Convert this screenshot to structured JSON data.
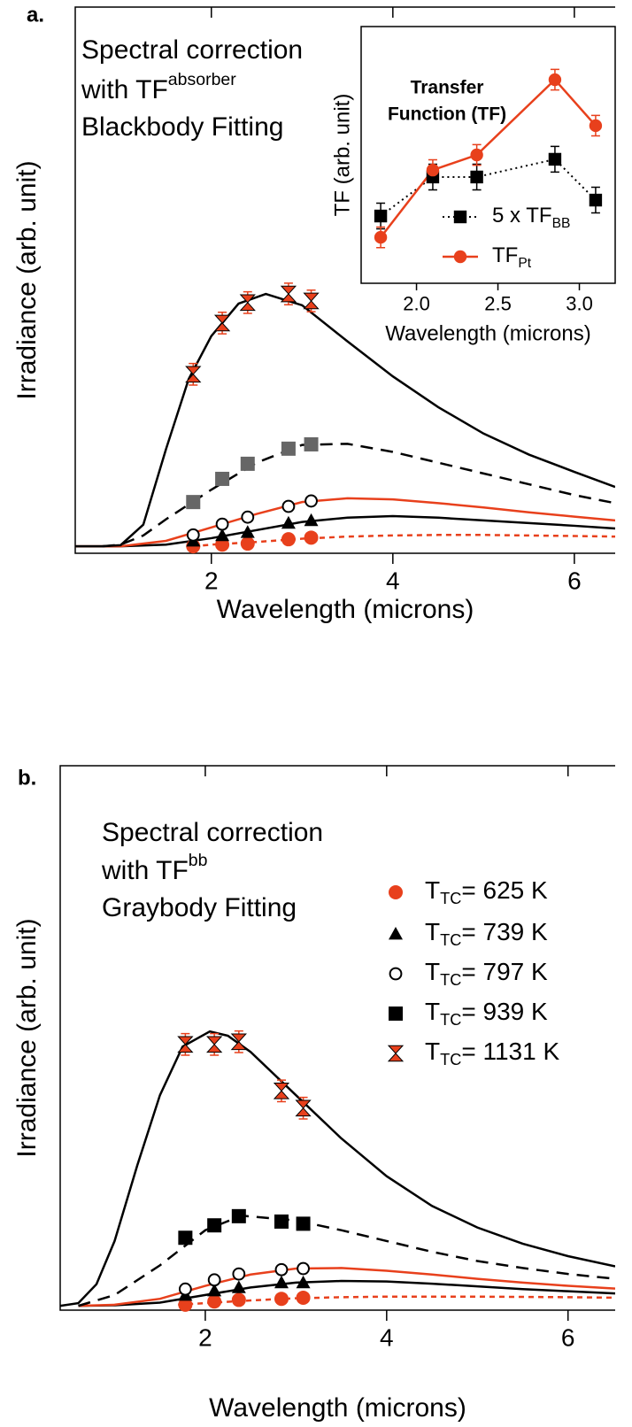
{
  "chart_data": [
    {
      "type": "scatter",
      "label": "a.",
      "xlabel": "Wavelength (microns)",
      "ylabel": "Irradiance (arb. unit)",
      "annotation": [
        {
          "text": "Spectral correction"
        },
        {
          "text": "with TF",
          "sup": "absorber"
        },
        {
          "text": "Blackbody Fitting"
        }
      ],
      "xlim": [
        0.5,
        6.45
      ],
      "ylim": [
        -1.3,
        100
      ],
      "xticks": [
        2,
        4,
        6
      ],
      "series": [
        {
          "marker": "circle",
          "color": "#e8401c",
          "x": [
            1.8,
            2.12,
            2.4,
            2.85,
            3.1
          ],
          "values": [
            0,
            0.3,
            0.5,
            1.3,
            1.6
          ]
        },
        {
          "marker": "triangle",
          "color": "#000000",
          "x": [
            1.8,
            2.12,
            2.4,
            2.85,
            3.1
          ],
          "values": [
            1.0,
            2.0,
            2.6,
            4.3,
            4.8
          ]
        },
        {
          "marker": "open-circle",
          "color": "#000000",
          "x": [
            1.8,
            2.12,
            2.4,
            2.85,
            3.1
          ],
          "values": [
            2.1,
            4.1,
            5.4,
            7.4,
            8.4
          ]
        },
        {
          "marker": "square",
          "color": "#666666",
          "x": [
            1.8,
            2.12,
            2.4,
            2.85,
            3.1
          ],
          "values": [
            8.2,
            12.5,
            15.3,
            18.1,
            18.9
          ]
        },
        {
          "marker": "hourglass",
          "color": "#e8401c",
          "x": [
            1.8,
            2.12,
            2.4,
            2.85,
            3.1
          ],
          "values": [
            31.9,
            41.4,
            45.2,
            46.8,
            45.5
          ],
          "errors": [
            2,
            2,
            2,
            2,
            2
          ]
        }
      ],
      "fits": [
        {
          "color": "#e8401c",
          "dash": true,
          "x": [
            1.8,
            2,
            2.5,
            3,
            3.5,
            4,
            4.5,
            5,
            5.5,
            6,
            6.45
          ],
          "values": [
            0,
            0.3,
            0.8,
            1.4,
            1.8,
            2,
            2.1,
            2.1,
            2,
            1.9,
            1.8
          ]
        },
        {
          "color": "#000000",
          "dash": false,
          "x": [
            0.5,
            1,
            1.5,
            2,
            2.5,
            3,
            3.5,
            4,
            4.5,
            5,
            5.5,
            6,
            6.45
          ],
          "values": [
            0,
            0,
            0.3,
            1.5,
            3,
            4.5,
            5.3,
            5.6,
            5.3,
            4.8,
            4.3,
            3.8,
            3.3
          ]
        },
        {
          "color": "#e8401c",
          "dash": false,
          "x": [
            0.5,
            1,
            1.5,
            2,
            2.5,
            3,
            3.5,
            4,
            4.5,
            5,
            5.5,
            6,
            6.45
          ],
          "values": [
            0,
            0,
            1,
            3.5,
            6,
            8.2,
            8.9,
            8.7,
            8,
            7.2,
            6.3,
            5.5,
            4.8
          ]
        },
        {
          "color": "#000000",
          "dash": true,
          "x": [
            0.8,
            1,
            1.25,
            1.5,
            2,
            2.5,
            3,
            3.5,
            4,
            4.5,
            5,
            5.5,
            6,
            6.45
          ],
          "values": [
            0,
            0.3,
            2,
            5,
            10.5,
            15.5,
            18.8,
            19,
            17.5,
            15.5,
            13.5,
            11.5,
            9.5,
            8
          ]
        },
        {
          "color": "#000000",
          "dash": false,
          "x": [
            0.5,
            0.8,
            1,
            1.25,
            1.5,
            1.75,
            2,
            2.3,
            2.6,
            3,
            3.5,
            4,
            4.5,
            5,
            5.5,
            6,
            6.45
          ],
          "values": [
            0,
            0,
            0.2,
            4,
            18,
            31,
            39,
            45,
            46.8,
            44.7,
            38,
            31.5,
            25.8,
            20.9,
            17,
            13.8,
            11
          ]
        }
      ]
    },
    {
      "type": "line",
      "title": [
        "Transfer",
        "Function (TF)"
      ],
      "xlabel": "Wavelength (microns)",
      "ylabel": "TF (arb. unit)",
      "xlim": [
        1.66,
        3.22
      ],
      "ylim": [
        0,
        100
      ],
      "xticks": [
        {
          "value": 2,
          "label": "2.0"
        },
        {
          "value": 2.5,
          "label": "2.5"
        },
        {
          "value": 3,
          "label": "3.0"
        }
      ],
      "series": [
        {
          "name": "5 x TF",
          "name_sub": "BB",
          "marker": "square",
          "color": "#000000",
          "dash": true,
          "x": [
            1.78,
            2.1,
            2.37,
            2.85,
            3.1
          ],
          "values": [
            26.2,
            41.4,
            41.4,
            48.3,
            32.4
          ],
          "errors": [
            5,
            5,
            5,
            5,
            5
          ]
        },
        {
          "name": "TF",
          "name_sub": "Pt",
          "marker": "circle",
          "color": "#e8401c",
          "dash": false,
          "x": [
            1.78,
            2.1,
            2.37,
            2.85,
            3.1
          ],
          "values": [
            17.9,
            44.1,
            50,
            79.3,
            61.4
          ],
          "errors": [
            4,
            4,
            4,
            4,
            4
          ]
        }
      ]
    },
    {
      "type": "scatter",
      "label": "b.",
      "xlabel": "Wavelength (microns)",
      "ylabel": "Irradiance (arb. unit)",
      "annotation": [
        {
          "text": "Spectral correction"
        },
        {
          "text": "with TF",
          "sup": "bb"
        },
        {
          "text": "Graybody Fitting"
        }
      ],
      "xlim": [
        0.4,
        6.52
      ],
      "ylim": [
        -0.8,
        100
      ],
      "xticks": [
        2,
        4,
        6
      ],
      "series": [
        {
          "name": "T",
          "name_sub": "TC",
          "name_rest": "= 625 K",
          "marker": "circle",
          "color": "#e8401c",
          "x": [
            1.78,
            2.1,
            2.37,
            2.84,
            3.08
          ],
          "values": [
            0.2,
            0.8,
            1.1,
            1.3,
            1.5
          ]
        },
        {
          "name": "T",
          "name_sub": "TC",
          "name_rest": "= 739 K",
          "marker": "triangle",
          "color": "#000000",
          "x": [
            1.78,
            2.1,
            2.37,
            2.84,
            3.08
          ],
          "values": [
            2,
            2.8,
            3.4,
            4.3,
            4.3
          ]
        },
        {
          "name": "T",
          "name_sub": "TC",
          "name_rest": "= 797 K",
          "marker": "open-circle",
          "color": "#000000",
          "x": [
            1.78,
            2.1,
            2.37,
            2.84,
            3.08
          ],
          "values": [
            3.1,
            4.8,
            5.9,
            6.7,
            6.9
          ]
        },
        {
          "name": "T",
          "name_sub": "TC",
          "name_rest": "= 939 K",
          "marker": "square",
          "color": "#000000",
          "x": [
            1.78,
            2.1,
            2.37,
            2.84,
            3.08
          ],
          "values": [
            12.6,
            14.9,
            16.6,
            15.6,
            15.2
          ]
        },
        {
          "name": "T",
          "name_sub": "TC",
          "name_rest": "= 1131 K",
          "marker": "hourglass",
          "color": "#e8401c",
          "x": [
            1.78,
            2.1,
            2.37,
            2.84,
            3.08
          ],
          "values": [
            48.4,
            48.4,
            48.9,
            39.8,
            36.6
          ],
          "errors": [
            2,
            2,
            2,
            2,
            2
          ]
        }
      ],
      "fits": [
        {
          "color": "#e8401c",
          "dash": true,
          "x": [
            1.7,
            2,
            2.5,
            3,
            3.5,
            4,
            5,
            6,
            6.52
          ],
          "values": [
            0.2,
            0.5,
            1,
            1.4,
            1.6,
            1.7,
            1.7,
            1.6,
            1.5
          ]
        },
        {
          "color": "#000000",
          "dash": false,
          "x": [
            0.6,
            1,
            1.5,
            2,
            2.5,
            3,
            3.5,
            4,
            4.5,
            5,
            5.5,
            6,
            6.52
          ],
          "values": [
            0,
            0.1,
            0.6,
            2,
            3.4,
            4.3,
            4.6,
            4.5,
            4.1,
            3.6,
            3.1,
            2.7,
            2.3
          ]
        },
        {
          "color": "#e8401c",
          "dash": false,
          "x": [
            0.6,
            1,
            1.5,
            2,
            2.5,
            3,
            3.5,
            4,
            4.5,
            5,
            5.5,
            6,
            6.52
          ],
          "values": [
            0,
            0.2,
            1.3,
            3.7,
            5.8,
            6.9,
            7,
            6.5,
            5.8,
            5,
            4.3,
            3.7,
            3.2
          ]
        },
        {
          "color": "#000000",
          "dash": true,
          "x": [
            0.6,
            1,
            1.5,
            2,
            2.4,
            3,
            3.5,
            4,
            4.5,
            5,
            5.5,
            6,
            6.52
          ],
          "values": [
            0,
            2,
            7.5,
            14,
            16.7,
            15.8,
            14,
            12,
            10,
            8.3,
            7,
            5.9,
            5
          ]
        },
        {
          "color": "#000000",
          "dash": false,
          "x": [
            0.4,
            0.6,
            0.8,
            1,
            1.25,
            1.5,
            1.75,
            2.05,
            2.25,
            2.5,
            3,
            3.5,
            4,
            4.5,
            5,
            5.5,
            6,
            6.52
          ],
          "values": [
            0,
            0.5,
            4,
            12,
            26,
            39,
            48,
            50.8,
            50,
            47,
            39,
            31,
            24,
            18.5,
            14.5,
            11.5,
            9.2,
            7.3
          ]
        }
      ]
    }
  ]
}
